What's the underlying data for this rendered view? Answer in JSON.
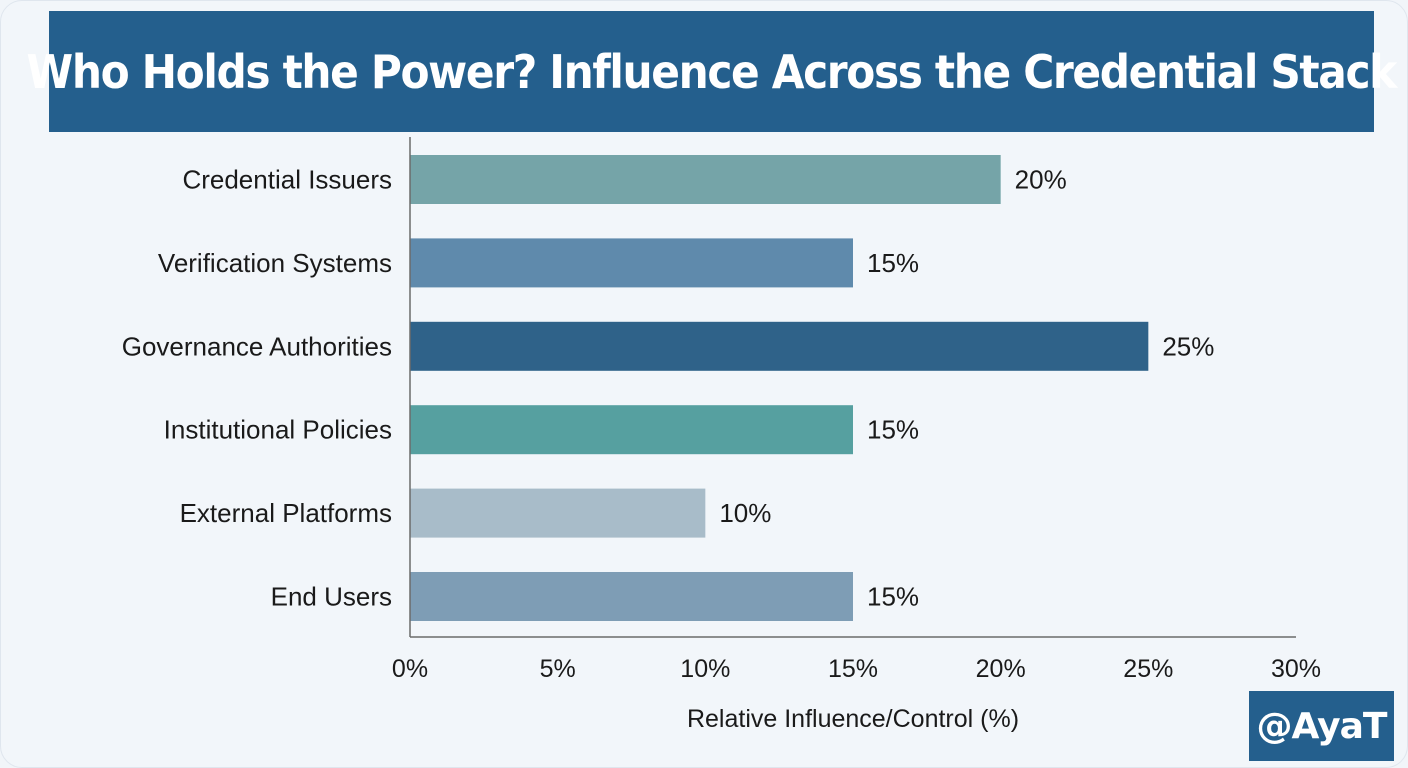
{
  "chart_data": {
    "type": "bar",
    "orientation": "horizontal",
    "title": "Who Holds the Power? Influence Across the Credential Stack",
    "xlabel": "Relative Influence/Control (%)",
    "ylabel": "",
    "xlim": [
      0,
      30
    ],
    "xticks": [
      0,
      5,
      10,
      15,
      20,
      25,
      30
    ],
    "xtick_labels": [
      "0%",
      "5%",
      "10%",
      "15%",
      "20%",
      "25%",
      "30%"
    ],
    "categories": [
      "Credential Issuers",
      "Verification Systems",
      "Governance Authorities",
      "Institutional Policies",
      "External Platforms",
      "End Users"
    ],
    "values": [
      20,
      15,
      25,
      15,
      10,
      15
    ],
    "value_labels": [
      "20%",
      "15%",
      "25%",
      "15%",
      "10%",
      "15%"
    ],
    "colors": [
      "#75a4a8",
      "#5f8aac",
      "#2f6289",
      "#56a0a0",
      "#a8bcc9",
      "#7e9db5"
    ],
    "grid": false,
    "legend": "none"
  },
  "watermark": "@AyaT"
}
